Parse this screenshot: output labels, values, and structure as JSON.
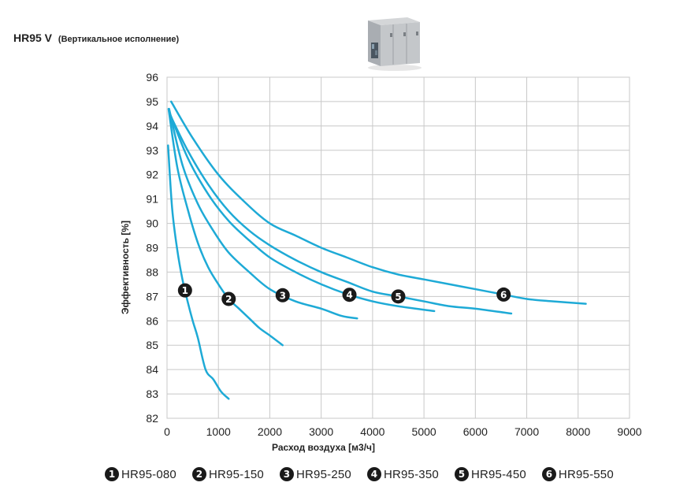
{
  "header": {
    "title": "HR95 V",
    "subtitle": "(Вертикальное исполнение)",
    "product_image": "ventilation-unit-icon"
  },
  "colors": {
    "line": "#1eaad6",
    "grid": "#c8c8c8",
    "badge": "#1a1a1a"
  },
  "chart_data": {
    "type": "line",
    "title": "",
    "xlabel": "Расход воздуха [м3/ч]",
    "ylabel": "Эффективность  [%]",
    "xlim": [
      0,
      9000
    ],
    "ylim": [
      82,
      96
    ],
    "xticks": [
      "0",
      "1000",
      "2000",
      "3000",
      "4000",
      "5000",
      "6000",
      "7000",
      "8000",
      "9000"
    ],
    "yticks": [
      "82",
      "83",
      "84",
      "85",
      "86",
      "87",
      "88",
      "89",
      "90",
      "91",
      "92",
      "93",
      "94",
      "95",
      "96"
    ],
    "grid": true,
    "legend_position": "bottom",
    "series": [
      {
        "id": "1",
        "name": "HR95-080",
        "marker_x": 350,
        "x": [
          20,
          100,
          200,
          300,
          400,
          500,
          600,
          750,
          900,
          1050,
          1200
        ],
        "y": [
          93.2,
          90.6,
          88.9,
          87.7,
          86.8,
          86.0,
          85.3,
          84.0,
          83.6,
          83.1,
          82.8
        ]
      },
      {
        "id": "2",
        "name": "HR95-150",
        "marker_x": 1200,
        "x": [
          30,
          200,
          400,
          600,
          800,
          1000,
          1200,
          1400,
          1600,
          1800,
          2000,
          2250
        ],
        "y": [
          94.7,
          92.3,
          90.6,
          89.2,
          88.2,
          87.5,
          86.9,
          86.5,
          86.1,
          85.7,
          85.4,
          85.0
        ]
      },
      {
        "id": "3",
        "name": "HR95-250",
        "marker_x": 2250,
        "x": [
          40,
          300,
          600,
          900,
          1200,
          1600,
          2000,
          2500,
          3000,
          3400,
          3700
        ],
        "y": [
          94.7,
          92.4,
          90.8,
          89.7,
          88.8,
          88.0,
          87.3,
          86.8,
          86.5,
          86.2,
          86.1
        ]
      },
      {
        "id": "4",
        "name": "HR95-350",
        "marker_x": 3550,
        "x": [
          40,
          400,
          800,
          1200,
          1600,
          2000,
          2500,
          3000,
          3500,
          4000,
          4500,
          5200
        ],
        "y": [
          94.6,
          92.7,
          91.2,
          90.1,
          89.3,
          88.6,
          88.0,
          87.5,
          87.1,
          86.8,
          86.6,
          86.4
        ]
      },
      {
        "id": "5",
        "name": "HR95-450",
        "marker_x": 4500,
        "x": [
          50,
          400,
          800,
          1200,
          1600,
          2000,
          2500,
          3000,
          3500,
          4000,
          4500,
          5000,
          5500,
          6000,
          6700
        ],
        "y": [
          94.5,
          93.0,
          91.6,
          90.5,
          89.7,
          89.1,
          88.5,
          88.0,
          87.6,
          87.2,
          87.0,
          86.8,
          86.6,
          86.5,
          86.3
        ]
      },
      {
        "id": "6",
        "name": "HR95-550",
        "marker_x": 6550,
        "x": [
          80,
          500,
          1000,
          1500,
          2000,
          2500,
          3000,
          3500,
          4000,
          4500,
          5000,
          5500,
          6000,
          6500,
          7000,
          7500,
          8150
        ],
        "y": [
          95.0,
          93.5,
          92.0,
          90.9,
          90.0,
          89.5,
          89.0,
          88.6,
          88.2,
          87.9,
          87.7,
          87.5,
          87.3,
          87.1,
          86.9,
          86.8,
          86.7
        ]
      }
    ]
  }
}
